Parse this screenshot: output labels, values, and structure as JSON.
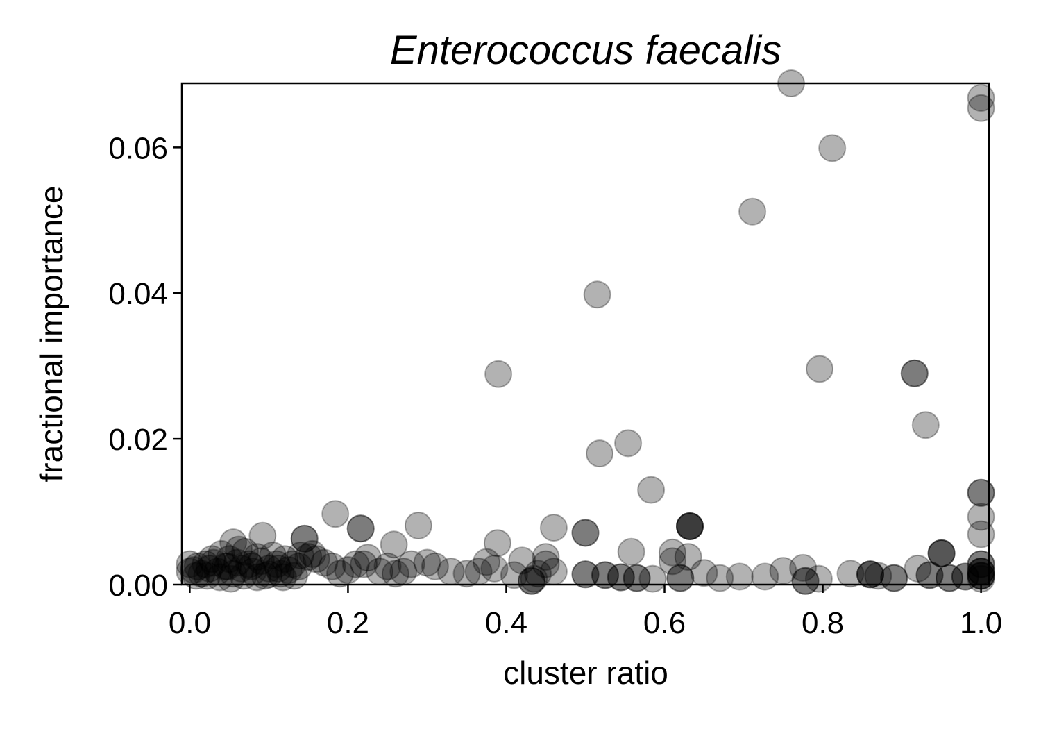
{
  "chart_data": {
    "type": "scatter",
    "title": "Enterococcus faecalis",
    "xlabel": "cluster ratio",
    "ylabel": "fractional importance",
    "xlim": [
      -0.01,
      1.01
    ],
    "ylim": [
      0.0,
      0.0688
    ],
    "xticks": [
      {
        "value": 0.0,
        "label": "0.0"
      },
      {
        "value": 0.2,
        "label": "0.2"
      },
      {
        "value": 0.4,
        "label": "0.4"
      },
      {
        "value": 0.6,
        "label": "0.6"
      },
      {
        "value": 0.8,
        "label": "0.8"
      },
      {
        "value": 1.0,
        "label": "1.0"
      }
    ],
    "yticks": [
      {
        "value": 0.0,
        "label": "0.00"
      },
      {
        "value": 0.02,
        "label": "0.02"
      },
      {
        "value": 0.04,
        "label": "0.04"
      },
      {
        "value": 0.06,
        "label": "0.06"
      }
    ],
    "grid": false,
    "marker_color": "#000000",
    "marker_alpha": 0.3,
    "series": [
      {
        "points": [
          [
            0.76,
            0.0688
          ],
          [
            1.0,
            0.0668
          ],
          [
            1.0,
            0.0654
          ],
          [
            0.812,
            0.0599
          ],
          [
            0.711,
            0.0512
          ],
          [
            0.515,
            0.0398
          ],
          [
            0.39,
            0.0289
          ],
          [
            0.796,
            0.0296
          ],
          [
            0.916,
            0.029
          ],
          [
            0.916,
            0.029
          ],
          [
            0.93,
            0.0219
          ],
          [
            0.554,
            0.0194
          ],
          [
            0.518,
            0.018
          ],
          [
            0.583,
            0.013
          ],
          [
            1.0,
            0.0126
          ],
          [
            1.0,
            0.0126
          ],
          [
            1.0,
            0.0093
          ],
          [
            1.0,
            0.0069
          ],
          [
            0.184,
            0.0097
          ],
          [
            0.216,
            0.0077
          ],
          [
            0.216,
            0.0077
          ],
          [
            0.289,
            0.0081
          ],
          [
            0.46,
            0.0078
          ],
          [
            0.632,
            0.008
          ],
          [
            0.632,
            0.008
          ],
          [
            0.632,
            0.008
          ],
          [
            0.632,
            0.008
          ],
          [
            0.5,
            0.0071
          ],
          [
            0.5,
            0.0071
          ],
          [
            0.389,
            0.0057
          ],
          [
            0.092,
            0.0067
          ],
          [
            0.145,
            0.0063
          ],
          [
            0.145,
            0.0063
          ],
          [
            0.055,
            0.0058
          ],
          [
            0.258,
            0.0055
          ],
          [
            0.558,
            0.0045
          ],
          [
            0.61,
            0.0044
          ],
          [
            0.95,
            0.0043
          ],
          [
            0.95,
            0.0043
          ],
          [
            0.95,
            0.0043
          ],
          [
            0.63,
            0.0038
          ],
          [
            0.45,
            0.0038
          ],
          [
            0.42,
            0.0033
          ],
          [
            0.225,
            0.0037
          ],
          [
            0.375,
            0.0031
          ],
          [
            0.61,
            0.0032
          ],
          [
            0.775,
            0.0023
          ],
          [
            0.75,
            0.0019
          ],
          [
            0.92,
            0.0022
          ],
          [
            0.835,
            0.0015
          ],
          [
            0.87,
            0.0012
          ],
          [
            0.695,
            0.0011
          ],
          [
            0.727,
            0.0011
          ],
          [
            0.795,
            0.0008
          ],
          [
            0.67,
            0.0009
          ],
          [
            0.65,
            0.0016
          ],
          [
            0.86,
            0.0014
          ],
          [
            0.86,
            0.0014
          ],
          [
            0.86,
            0.0014
          ],
          [
            0.89,
            0.0009
          ],
          [
            0.89,
            0.0009
          ],
          [
            0.935,
            0.0013
          ],
          [
            0.935,
            0.0013
          ],
          [
            0.96,
            0.0009
          ],
          [
            0.96,
            0.0009
          ],
          [
            0.98,
            0.0011
          ],
          [
            0.98,
            0.0011
          ],
          [
            1.0,
            0.0028
          ],
          [
            1.0,
            0.0028
          ],
          [
            1.0,
            0.0018
          ],
          [
            1.0,
            0.0018
          ],
          [
            1.0,
            0.0018
          ],
          [
            1.0,
            0.0012
          ],
          [
            1.0,
            0.0012
          ],
          [
            1.0,
            0.0012
          ],
          [
            1.0,
            0.0008
          ],
          [
            0.5,
            0.0014
          ],
          [
            0.5,
            0.0014
          ],
          [
            0.525,
            0.0013
          ],
          [
            0.525,
            0.0013
          ],
          [
            0.545,
            0.001
          ],
          [
            0.545,
            0.001
          ],
          [
            0.565,
            0.0009
          ],
          [
            0.565,
            0.0009
          ],
          [
            0.585,
            0.0008
          ],
          [
            0.62,
            0.0009
          ],
          [
            0.62,
            0.0009
          ],
          [
            0.432,
            0.0005
          ],
          [
            0.432,
            0.0005
          ],
          [
            0.435,
            0.0008
          ],
          [
            0.778,
            0.0005
          ],
          [
            0.778,
            0.0005
          ],
          [
            0.46,
            0.0018
          ],
          [
            0.45,
            0.0028
          ],
          [
            0.44,
            0.0015
          ],
          [
            0.41,
            0.0013
          ],
          [
            0.385,
            0.0022
          ],
          [
            0.365,
            0.0018
          ],
          [
            0.35,
            0.0015
          ],
          [
            0.33,
            0.0018
          ],
          [
            0.31,
            0.0025
          ],
          [
            0.3,
            0.003
          ],
          [
            0.28,
            0.0028
          ],
          [
            0.27,
            0.0018
          ],
          [
            0.26,
            0.0015
          ],
          [
            0.25,
            0.0025
          ],
          [
            0.24,
            0.0018
          ],
          [
            0.22,
            0.0028
          ],
          [
            0.21,
            0.0028
          ],
          [
            0.2,
            0.002
          ],
          [
            0.19,
            0.0015
          ],
          [
            0.18,
            0.0025
          ],
          [
            0.17,
            0.003
          ],
          [
            0.16,
            0.0035
          ],
          [
            0.155,
            0.0042
          ],
          [
            0.15,
            0.0038
          ],
          [
            0.14,
            0.004
          ],
          [
            0.13,
            0.0028
          ],
          [
            0.125,
            0.002
          ],
          [
            0.12,
            0.0035
          ],
          [
            0.115,
            0.0015
          ],
          [
            0.11,
            0.0028
          ],
          [
            0.105,
            0.004
          ],
          [
            0.1,
            0.0022
          ],
          [
            0.095,
            0.0012
          ],
          [
            0.09,
            0.0032
          ],
          [
            0.085,
            0.0038
          ],
          [
            0.08,
            0.0018
          ],
          [
            0.075,
            0.0028
          ],
          [
            0.07,
            0.0045
          ],
          [
            0.065,
            0.0022
          ],
          [
            0.06,
            0.003
          ],
          [
            0.055,
            0.0015
          ],
          [
            0.05,
            0.0035
          ],
          [
            0.045,
            0.0025
          ],
          [
            0.04,
            0.0042
          ],
          [
            0.035,
            0.0018
          ],
          [
            0.03,
            0.003
          ],
          [
            0.025,
            0.0022
          ],
          [
            0.02,
            0.0028
          ],
          [
            0.015,
            0.0015
          ],
          [
            0.01,
            0.0025
          ],
          [
            0.005,
            0.002
          ],
          [
            0.0,
            0.0018
          ],
          [
            0.0,
            0.0028
          ],
          [
            0.008,
            0.0012
          ],
          [
            0.022,
            0.0012
          ],
          [
            0.038,
            0.001
          ],
          [
            0.052,
            0.0008
          ],
          [
            0.068,
            0.0012
          ],
          [
            0.085,
            0.001
          ],
          [
            0.1,
            0.0014
          ],
          [
            0.118,
            0.001
          ],
          [
            0.132,
            0.0012
          ],
          [
            0.028,
            0.0035
          ],
          [
            0.048,
            0.0025
          ],
          [
            0.062,
            0.0048
          ],
          [
            0.078,
            0.0025
          ],
          [
            0.112,
            0.0022
          ],
          [
            0.138,
            0.0025
          ]
        ]
      }
    ]
  }
}
